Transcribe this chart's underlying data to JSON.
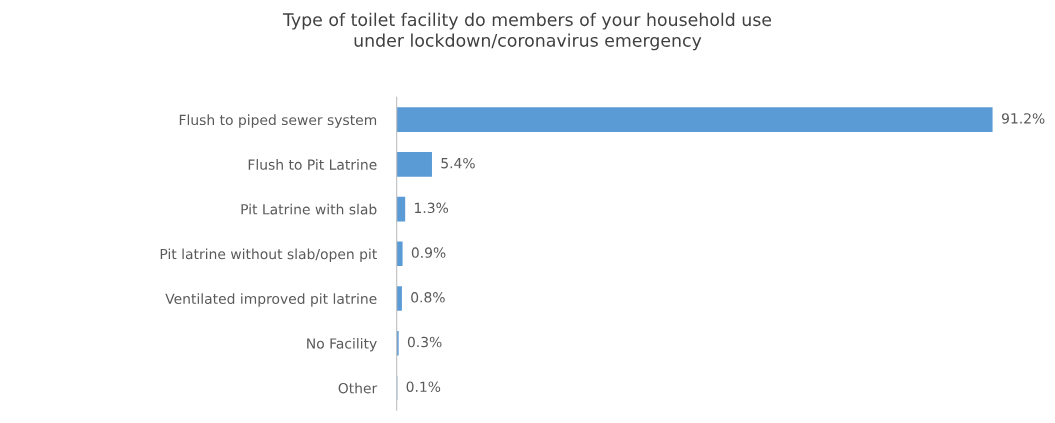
{
  "chart_data": {
    "type": "bar",
    "orientation": "horizontal",
    "title": "Type of toilet facility do members of your household use\nunder lockdown/coronavirus emergency",
    "categories": [
      "Flush to piped sewer system",
      "Flush to Pit Latrine",
      "Pit Latrine with slab",
      "Pit latrine without slab/open pit",
      "Ventilated improved pit latrine",
      "No Facility",
      "Other"
    ],
    "values": [
      91.2,
      5.4,
      1.3,
      0.9,
      0.8,
      0.3,
      0.1
    ],
    "value_labels": [
      "91.2%",
      "5.4%",
      "1.3%",
      "0.9%",
      "0.8%",
      "0.3%",
      "0.1%"
    ],
    "color": "#5b9bd5",
    "grid": false,
    "legend": false
  }
}
